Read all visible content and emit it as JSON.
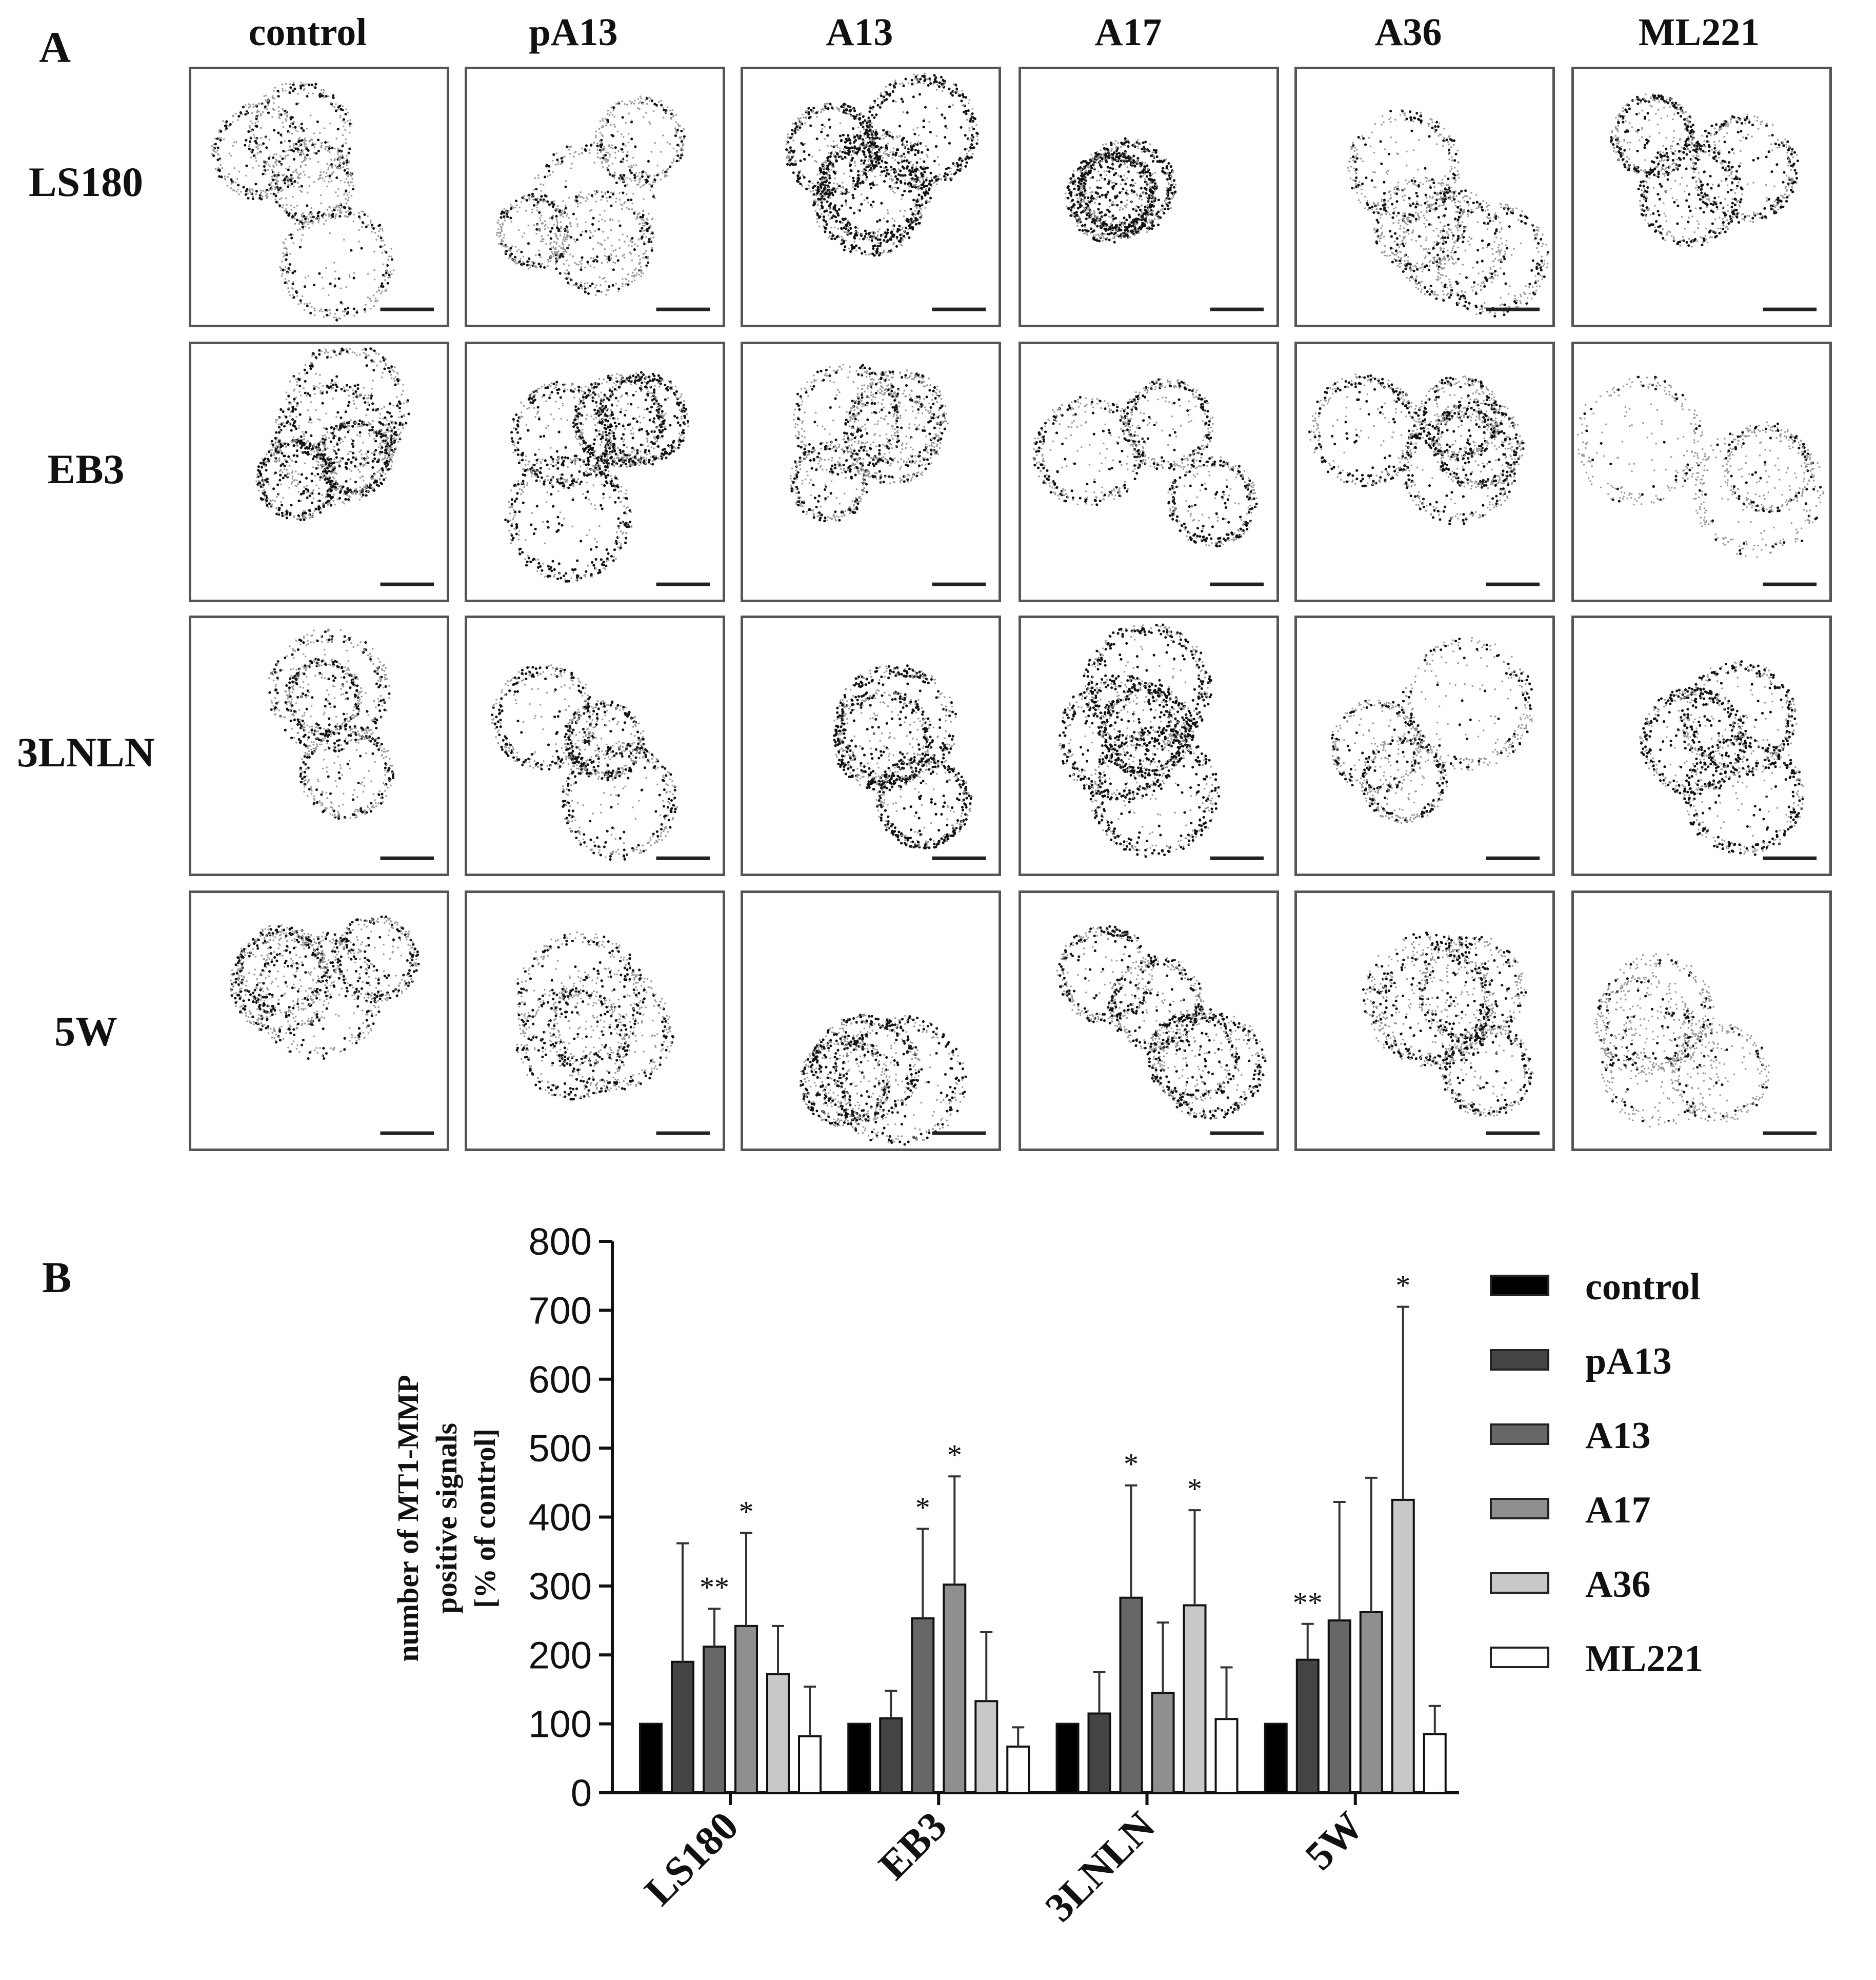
{
  "panel_a": {
    "letter": "A",
    "columns": [
      "control",
      "pA13",
      "A13",
      "A17",
      "A36",
      "ML221"
    ],
    "rows": [
      "LS180",
      "EB3",
      "3LNLN",
      "5W"
    ]
  },
  "panel_b": {
    "letter": "B"
  },
  "chart_data": {
    "type": "bar",
    "ylabel_lines": [
      "number of MT1-MMP",
      "positive signals",
      "[% of control]"
    ],
    "xlabel": "",
    "ylim": [
      0,
      800
    ],
    "yticks": [
      0,
      100,
      200,
      300,
      400,
      500,
      600,
      700,
      800
    ],
    "categories": [
      "LS180",
      "EB3",
      "3LNLN",
      "5W"
    ],
    "series": [
      {
        "name": "control",
        "color": "#000000",
        "values": [
          100,
          100,
          100,
          100
        ],
        "errors": [
          0,
          0,
          0,
          0
        ],
        "marks": [
          "",
          "",
          "",
          ""
        ]
      },
      {
        "name": "pA13",
        "color": "#444444",
        "values": [
          190,
          108,
          115,
          193
        ],
        "errors": [
          172,
          40,
          60,
          52
        ],
        "marks": [
          "",
          "",
          "",
          "**"
        ]
      },
      {
        "name": "A13",
        "color": "#676767",
        "values": [
          212,
          253,
          283,
          250
        ],
        "errors": [
          55,
          130,
          163,
          172
        ],
        "marks": [
          "**",
          "*",
          "*",
          ""
        ]
      },
      {
        "name": "A17",
        "color": "#8f8f8f",
        "values": [
          242,
          302,
          145,
          262
        ],
        "errors": [
          135,
          157,
          102,
          195
        ],
        "marks": [
          "*",
          "*",
          "",
          ""
        ]
      },
      {
        "name": "A36",
        "color": "#c8c8c8",
        "values": [
          172,
          133,
          272,
          425
        ],
        "errors": [
          70,
          100,
          138,
          280
        ],
        "marks": [
          "",
          "",
          "*",
          "*"
        ]
      },
      {
        "name": "ML221",
        "color": "#ffffff",
        "values": [
          82,
          67,
          107,
          85
        ],
        "errors": [
          72,
          28,
          75,
          41
        ],
        "marks": [
          "",
          "",
          "",
          ""
        ]
      }
    ],
    "legend": "right"
  }
}
